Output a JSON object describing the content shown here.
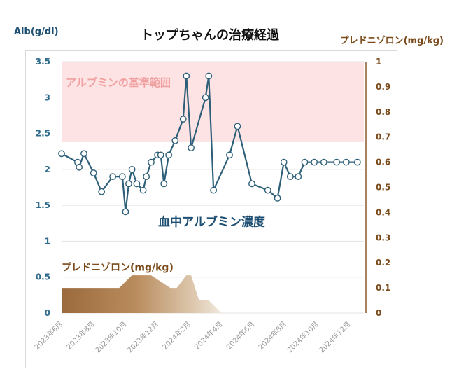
{
  "chart_data": {
    "type": "line",
    "title": "トップちゃんの治療経過",
    "ylabel_left": "Alb(g/dl)",
    "ylabel_right": "プレドニゾロン(mg/kg)",
    "ylim_left": [
      0,
      3.5
    ],
    "ylim_right": [
      0,
      1
    ],
    "yticks_left": [
      "0",
      "0.5",
      "1",
      "1.5",
      "2",
      "2.5",
      "3",
      "3.5"
    ],
    "yticks_right": [
      "0",
      "0.1",
      "0.2",
      "0.3",
      "0.4",
      "0.5",
      "0.6",
      "0.7",
      "0.8",
      "0.9",
      "1"
    ],
    "x_categories": [
      "2023年6月",
      "2023年8月",
      "2023年10月",
      "2023年12月",
      "2024年2月",
      "2024年4月",
      "2024年6月",
      "2024年8月",
      "2024年10月",
      "2024年12月"
    ],
    "reference_band": {
      "label": "アルブミンの基準範囲",
      "from": 2.38,
      "to": 3.5,
      "color": "#fde3e3"
    },
    "series": [
      {
        "name": "血中アルブミン濃度",
        "axis": "left",
        "color": "#2e5f78",
        "x": [
          0,
          0.5,
          0.55,
          0.7,
          1.0,
          1.25,
          1.6,
          1.9,
          2.0,
          2.1,
          2.2,
          2.35,
          2.55,
          2.65,
          2.8,
          3.0,
          3.1,
          3.2,
          3.35,
          3.55,
          3.8,
          3.9,
          4.05,
          4.5,
          4.6,
          4.75,
          5.25,
          5.5,
          5.95,
          6.45,
          6.75,
          6.95,
          7.15,
          7.4,
          7.6,
          7.9,
          8.2,
          8.6,
          8.9,
          9.25
        ],
        "y": [
          2.22,
          2.1,
          2.03,
          2.22,
          1.95,
          1.69,
          1.9,
          1.9,
          1.41,
          1.8,
          2.0,
          1.8,
          1.71,
          1.9,
          2.1,
          2.2,
          2.2,
          1.8,
          2.2,
          2.4,
          2.7,
          3.3,
          2.3,
          3.0,
          3.3,
          1.71,
          2.2,
          2.6,
          1.8,
          1.71,
          1.6,
          2.1,
          1.9,
          1.9,
          2.1,
          2.1,
          2.1,
          2.1,
          2.1,
          2.1
        ]
      },
      {
        "name": "プレドニゾロン(mg/kg)",
        "axis": "right",
        "type": "area",
        "x": [
          0,
          1.8,
          2.2,
          2.8,
          3.4,
          3.6,
          3.9,
          4.05,
          4.3,
          4.45,
          4.6,
          5.0,
          5.15
        ],
        "y": [
          0.1,
          0.1,
          0.15,
          0.15,
          0.1,
          0.1,
          0.15,
          0.15,
          0.05,
          0.05,
          0.05,
          0,
          0
        ]
      }
    ]
  }
}
